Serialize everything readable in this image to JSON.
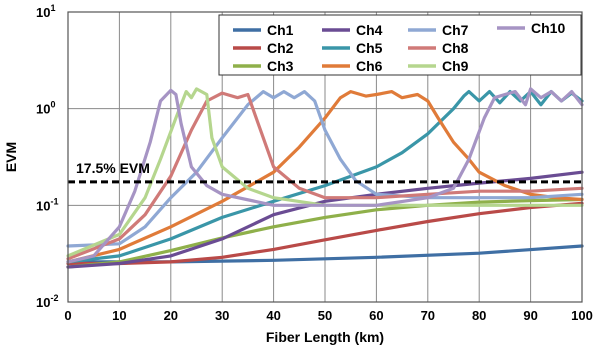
{
  "chart_data": {
    "type": "line",
    "xlabel": "Fiber Length (km)",
    "ylabel": "EVM",
    "xlim": [
      0,
      100
    ],
    "ylim": [
      0.01,
      10
    ],
    "yscale": "log",
    "grid": true,
    "legend_position": "top-right",
    "x_ticks": [
      "0",
      "10",
      "20",
      "30",
      "40",
      "50",
      "60",
      "70",
      "80",
      "90",
      "100"
    ],
    "y_ticks": [
      {
        "value": 10,
        "base": "10",
        "exp": "1"
      },
      {
        "value": 1,
        "base": "10",
        "exp": "0"
      },
      {
        "value": 0.1,
        "base": "10",
        "exp": "-1"
      },
      {
        "value": 0.01,
        "base": "10",
        "exp": "-2"
      }
    ],
    "threshold": {
      "value": 0.175,
      "label": "17.5% EVM"
    },
    "series": [
      {
        "name": "Ch1",
        "color": "#3f6fa4",
        "points": [
          [
            0,
            0.026
          ],
          [
            20,
            0.026
          ],
          [
            40,
            0.027
          ],
          [
            60,
            0.029
          ],
          [
            80,
            0.032
          ],
          [
            100,
            0.038
          ]
        ]
      },
      {
        "name": "Ch2",
        "color": "#b94a48",
        "points": [
          [
            0,
            0.025
          ],
          [
            10,
            0.025
          ],
          [
            20,
            0.026
          ],
          [
            30,
            0.029
          ],
          [
            40,
            0.035
          ],
          [
            50,
            0.044
          ],
          [
            60,
            0.055
          ],
          [
            70,
            0.068
          ],
          [
            80,
            0.082
          ],
          [
            90,
            0.095
          ],
          [
            100,
            0.105
          ]
        ]
      },
      {
        "name": "Ch3",
        "color": "#8fb04a",
        "points": [
          [
            0,
            0.023
          ],
          [
            10,
            0.026
          ],
          [
            20,
            0.034
          ],
          [
            30,
            0.046
          ],
          [
            40,
            0.06
          ],
          [
            50,
            0.075
          ],
          [
            60,
            0.09
          ],
          [
            70,
            0.1
          ],
          [
            80,
            0.108
          ],
          [
            90,
            0.112
          ],
          [
            100,
            0.115
          ]
        ]
      },
      {
        "name": "Ch4",
        "color": "#6a4c93",
        "points": [
          [
            0,
            0.023
          ],
          [
            10,
            0.025
          ],
          [
            20,
            0.03
          ],
          [
            30,
            0.045
          ],
          [
            40,
            0.08
          ],
          [
            50,
            0.11
          ],
          [
            60,
            0.13
          ],
          [
            70,
            0.15
          ],
          [
            80,
            0.17
          ],
          [
            90,
            0.19
          ],
          [
            100,
            0.22
          ]
        ]
      },
      {
        "name": "Ch5",
        "color": "#3a96a8",
        "points": [
          [
            0,
            0.026
          ],
          [
            10,
            0.03
          ],
          [
            20,
            0.045
          ],
          [
            30,
            0.075
          ],
          [
            40,
            0.11
          ],
          [
            50,
            0.16
          ],
          [
            55,
            0.2
          ],
          [
            60,
            0.25
          ],
          [
            65,
            0.35
          ],
          [
            70,
            0.55
          ],
          [
            75,
            1.0
          ],
          [
            77,
            1.35
          ],
          [
            78,
            1.5
          ],
          [
            80,
            1.2
          ],
          [
            82,
            1.5
          ],
          [
            84,
            1.15
          ],
          [
            86,
            1.5
          ],
          [
            88,
            1.2
          ],
          [
            90,
            1.5
          ],
          [
            92,
            1.1
          ],
          [
            94,
            1.5
          ],
          [
            96,
            1.2
          ],
          [
            98,
            1.45
          ],
          [
            100,
            1.2
          ]
        ]
      },
      {
        "name": "Ch6",
        "color": "#e07b39",
        "points": [
          [
            0,
            0.026
          ],
          [
            10,
            0.035
          ],
          [
            20,
            0.06
          ],
          [
            30,
            0.11
          ],
          [
            40,
            0.22
          ],
          [
            45,
            0.4
          ],
          [
            50,
            0.8
          ],
          [
            53,
            1.3
          ],
          [
            55,
            1.5
          ],
          [
            58,
            1.35
          ],
          [
            60,
            1.4
          ],
          [
            63,
            1.5
          ],
          [
            65,
            1.3
          ],
          [
            68,
            1.4
          ],
          [
            70,
            1.2
          ],
          [
            72,
            0.8
          ],
          [
            75,
            0.45
          ],
          [
            78,
            0.3
          ],
          [
            80,
            0.22
          ],
          [
            85,
            0.16
          ],
          [
            90,
            0.13
          ],
          [
            95,
            0.12
          ],
          [
            100,
            0.115
          ]
        ]
      },
      {
        "name": "Ch7",
        "color": "#8fa8d4",
        "points": [
          [
            0,
            0.038
          ],
          [
            10,
            0.04
          ],
          [
            15,
            0.06
          ],
          [
            20,
            0.12
          ],
          [
            25,
            0.22
          ],
          [
            30,
            0.5
          ],
          [
            35,
            1.1
          ],
          [
            38,
            1.5
          ],
          [
            40,
            1.3
          ],
          [
            42,
            1.5
          ],
          [
            44,
            1.3
          ],
          [
            46,
            1.5
          ],
          [
            48,
            1.2
          ],
          [
            50,
            0.6
          ],
          [
            53,
            0.3
          ],
          [
            56,
            0.18
          ],
          [
            60,
            0.13
          ],
          [
            70,
            0.12
          ],
          [
            80,
            0.12
          ],
          [
            90,
            0.12
          ],
          [
            100,
            0.13
          ]
        ]
      },
      {
        "name": "Ch8",
        "color": "#d07a78",
        "points": [
          [
            0,
            0.028
          ],
          [
            10,
            0.045
          ],
          [
            15,
            0.08
          ],
          [
            20,
            0.2
          ],
          [
            24,
            0.6
          ],
          [
            27,
            1.2
          ],
          [
            30,
            1.45
          ],
          [
            33,
            1.3
          ],
          [
            35,
            1.4
          ],
          [
            37,
            0.7
          ],
          [
            40,
            0.25
          ],
          [
            45,
            0.15
          ],
          [
            50,
            0.12
          ],
          [
            60,
            0.12
          ],
          [
            70,
            0.13
          ],
          [
            80,
            0.14
          ],
          [
            90,
            0.14
          ],
          [
            100,
            0.15
          ]
        ]
      },
      {
        "name": "Ch9",
        "color": "#b5d68e",
        "points": [
          [
            0,
            0.03
          ],
          [
            10,
            0.05
          ],
          [
            15,
            0.12
          ],
          [
            18,
            0.3
          ],
          [
            21,
            0.8
          ],
          [
            23,
            1.5
          ],
          [
            24,
            1.3
          ],
          [
            25,
            1.6
          ],
          [
            27,
            1.4
          ],
          [
            28,
            0.5
          ],
          [
            30,
            0.25
          ],
          [
            35,
            0.15
          ],
          [
            40,
            0.12
          ],
          [
            50,
            0.1
          ],
          [
            60,
            0.1
          ],
          [
            70,
            0.1
          ],
          [
            80,
            0.1
          ],
          [
            90,
            0.1
          ],
          [
            100,
            0.1
          ]
        ]
      },
      {
        "name": "Ch10",
        "color": "#a694c4",
        "points": [
          [
            0,
            0.026
          ],
          [
            5,
            0.03
          ],
          [
            10,
            0.06
          ],
          [
            13,
            0.14
          ],
          [
            16,
            0.45
          ],
          [
            18,
            1.2
          ],
          [
            20,
            1.55
          ],
          [
            21,
            1.4
          ],
          [
            22,
            0.7
          ],
          [
            24,
            0.25
          ],
          [
            27,
            0.16
          ],
          [
            30,
            0.13
          ],
          [
            40,
            0.1
          ],
          [
            50,
            0.1
          ],
          [
            60,
            0.1
          ],
          [
            70,
            0.12
          ],
          [
            75,
            0.15
          ],
          [
            78,
            0.3
          ],
          [
            81,
            0.8
          ],
          [
            83,
            1.3
          ],
          [
            85,
            1.4
          ],
          [
            87,
            1.5
          ],
          [
            89,
            1.1
          ],
          [
            90,
            1.6
          ],
          [
            92,
            1.3
          ],
          [
            94,
            1.5
          ],
          [
            96,
            1.2
          ],
          [
            98,
            1.5
          ],
          [
            100,
            1.1
          ]
        ]
      }
    ]
  }
}
